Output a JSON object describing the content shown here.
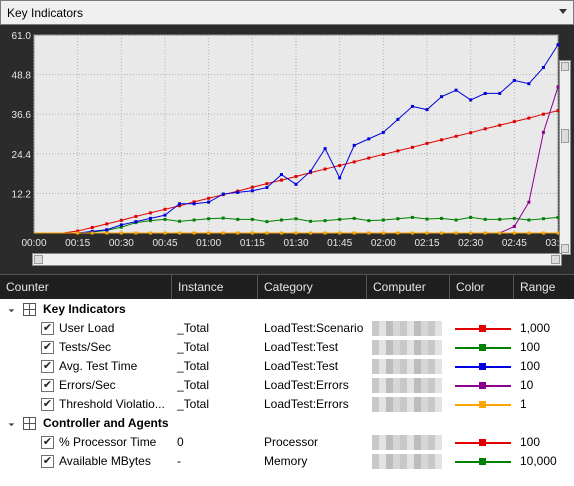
{
  "selector": {
    "value": "Key Indicators"
  },
  "chart_data": {
    "type": "line",
    "ylim": [
      0,
      61.0
    ],
    "yticks": [
      "12.2",
      "24.4",
      "36.6",
      "48.8",
      "61.0"
    ],
    "xticks": [
      "00:00",
      "00:15",
      "00:30",
      "00:45",
      "01:00",
      "01:15",
      "01:30",
      "01:45",
      "02:00",
      "02:15",
      "02:30",
      "02:45",
      "03:00"
    ],
    "x_minutes": [
      0,
      5,
      10,
      15,
      20,
      25,
      30,
      35,
      40,
      45,
      50,
      55,
      60,
      65,
      70,
      75,
      80,
      85,
      90,
      95,
      100,
      105,
      110,
      115,
      120,
      125,
      130,
      135,
      140,
      145,
      150,
      155,
      160,
      165,
      170,
      175,
      180
    ],
    "series": [
      {
        "name": "User Load",
        "color": "#e00000",
        "values": [
          0,
          0,
          0,
          0.6,
          1.7,
          2.8,
          3.9,
          5.1,
          6.2,
          7.3,
          8.4,
          9.6,
          10.7,
          11.8,
          12.9,
          14.1,
          15.2,
          16.3,
          17.4,
          18.6,
          19.7,
          20.8,
          21.9,
          23.1,
          24.2,
          25.3,
          26.4,
          27.6,
          28.7,
          29.8,
          30.9,
          32.1,
          33.2,
          34.3,
          35.4,
          36.6,
          37.7
        ]
      },
      {
        "name": "Tests/Sec",
        "color": "#008000",
        "values": [
          0,
          0,
          0,
          0,
          0.3,
          0.8,
          1.8,
          3.2,
          3.8,
          4.2,
          3.6,
          4.0,
          4.4,
          4.6,
          4.2,
          4.2,
          3.5,
          4.0,
          4.4,
          3.6,
          3.8,
          4.2,
          4.5,
          3.8,
          4.0,
          4.4,
          4.8,
          4.3,
          4.5,
          4.0,
          4.8,
          4.2,
          4.2,
          4.5,
          4.0,
          4.4,
          4.8
        ]
      },
      {
        "name": "Avg. Test Time",
        "color": "#0000e0",
        "values": [
          0,
          0,
          0,
          0,
          0.5,
          1.0,
          2.5,
          3.5,
          4.5,
          5.5,
          9.0,
          9.0,
          9.5,
          12.0,
          12.5,
          13.0,
          14.0,
          18.0,
          15.0,
          19.0,
          26.0,
          17.0,
          27.0,
          29.0,
          31.0,
          35.0,
          39.0,
          38.0,
          42.0,
          44.0,
          41.0,
          43.0,
          43.0,
          47.0,
          46.0,
          51.0,
          58.0
        ]
      },
      {
        "name": "Errors/Sec",
        "color": "#8b008b",
        "values": [
          0,
          0,
          0,
          0,
          0,
          0,
          0,
          0,
          0,
          0,
          0,
          0,
          0,
          0,
          0,
          0,
          0,
          0,
          0,
          0,
          0,
          0,
          0,
          0,
          0,
          0,
          0,
          0,
          0,
          0,
          0,
          0,
          0,
          2.0,
          9.5,
          31.0,
          45.0
        ]
      },
      {
        "name": "Threshold Violations/Sec",
        "color": "#ffa500",
        "values": [
          0,
          0,
          0,
          0,
          0,
          0,
          0,
          0,
          0,
          0,
          0,
          0,
          0,
          0,
          0,
          0,
          0,
          0,
          0,
          0,
          0,
          0,
          0,
          0,
          0,
          0,
          0,
          0,
          0,
          0,
          0,
          0,
          0,
          0,
          0,
          0,
          0
        ]
      }
    ]
  },
  "columns": [
    "Counter",
    "Instance",
    "Category",
    "Computer",
    "Color",
    "Range"
  ],
  "groups": [
    {
      "title": "Key Indicators",
      "rows": [
        {
          "counter": "User Load",
          "instance": "_Total",
          "category": "LoadTest:Scenario",
          "color": "#e00000",
          "range": "1,000"
        },
        {
          "counter": "Tests/Sec",
          "instance": "_Total",
          "category": "LoadTest:Test",
          "color": "#008000",
          "range": "100"
        },
        {
          "counter": "Avg. Test Time",
          "instance": "_Total",
          "category": "LoadTest:Test",
          "color": "#0000e0",
          "range": "100"
        },
        {
          "counter": "Errors/Sec",
          "instance": "_Total",
          "category": "LoadTest:Errors",
          "color": "#8b008b",
          "range": "10"
        },
        {
          "counter": "Threshold Violatio...",
          "instance": "_Total",
          "category": "LoadTest:Errors",
          "color": "#ffa500",
          "range": "1"
        }
      ]
    },
    {
      "title": "Controller and Agents",
      "rows": [
        {
          "counter": "% Processor Time",
          "instance": "0",
          "category": "Processor",
          "color": "#e00000",
          "range": "100"
        },
        {
          "counter": "Available MBytes",
          "instance": "-",
          "category": "Memory",
          "color": "#008000",
          "range": "10,000"
        }
      ]
    }
  ]
}
